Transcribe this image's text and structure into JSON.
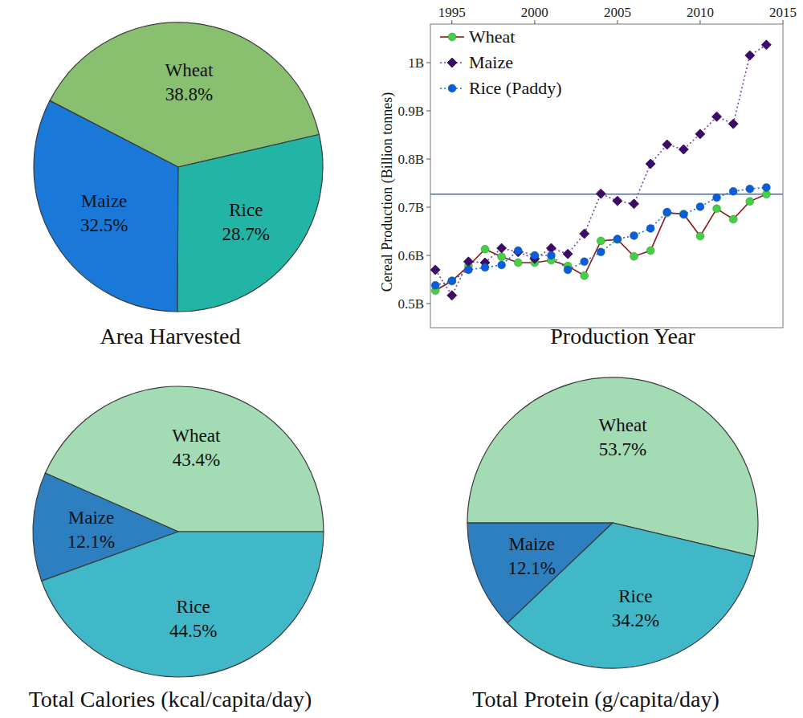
{
  "chart_data": [
    {
      "type": "pie",
      "title": "Area Harvested",
      "categories": [
        "Wheat",
        "Maize",
        "Rice"
      ],
      "values": [
        38.8,
        32.5,
        28.7
      ],
      "value_labels": [
        "38.8%",
        "32.5%",
        "28.7%"
      ],
      "colors": [
        "#88c070",
        "#1a78d8",
        "#22b5a5"
      ],
      "data_labels": true
    },
    {
      "type": "line",
      "x_label": "Production Year",
      "y_label": "Cereal Production (Billion tonnes)",
      "x": [
        1994,
        1995,
        1996,
        1997,
        1998,
        1999,
        2000,
        2001,
        2002,
        2003,
        2004,
        2005,
        2006,
        2007,
        2008,
        2009,
        2010,
        2011,
        2012,
        2013,
        2014
      ],
      "xlim": [
        1993.7,
        2015
      ],
      "xticks": [
        1995,
        2000,
        2005,
        2010,
        2015
      ],
      "ylim": [
        0.45,
        1.08
      ],
      "yticks": [
        {
          "value": 0.5,
          "label": "0.5B"
        },
        {
          "value": 0.6,
          "label": "0.6B"
        },
        {
          "value": 0.7,
          "label": "0.7B"
        },
        {
          "value": 0.8,
          "label": "0.8B"
        },
        {
          "value": 0.9,
          "label": "0.9B"
        },
        {
          "value": 1,
          "label": "1B"
        }
      ],
      "grid": false,
      "legend": "upper left",
      "reference_line": 0.727,
      "series": [
        {
          "name": "Wheat",
          "color": "#8b1a1a",
          "marker": "circle",
          "line_style": "solid",
          "values": [
            0.527,
            0.547,
            0.578,
            0.613,
            0.597,
            0.585,
            0.585,
            0.59,
            0.578,
            0.558,
            0.63,
            0.633,
            0.598,
            0.61,
            0.688,
            0.686,
            0.64,
            0.697,
            0.675,
            0.712,
            0.727
          ]
        },
        {
          "name": "Maize",
          "color": "#7a3fb0",
          "marker": "diamond",
          "line_style": "dotted",
          "values": [
            0.57,
            0.517,
            0.587,
            0.585,
            0.615,
            0.607,
            0.593,
            0.615,
            0.603,
            0.645,
            0.728,
            0.713,
            0.707,
            0.79,
            0.83,
            0.82,
            0.852,
            0.888,
            0.873,
            1.015,
            1.037
          ]
        },
        {
          "name": "Rice (Paddy)",
          "color": "#1a6fd6",
          "marker": "circle",
          "line_style": "dotted",
          "values": [
            0.538,
            0.547,
            0.57,
            0.575,
            0.58,
            0.61,
            0.6,
            0.6,
            0.57,
            0.587,
            0.607,
            0.634,
            0.641,
            0.656,
            0.69,
            0.685,
            0.701,
            0.72,
            0.733,
            0.738,
            0.741
          ]
        }
      ]
    },
    {
      "type": "pie",
      "title": "Total Calories (kcal/capita/day)",
      "categories": [
        "Wheat",
        "Maize",
        "Rice"
      ],
      "values": [
        43.4,
        12.1,
        44.5
      ],
      "value_labels": [
        "43.4%",
        "12.1%",
        "44.5%"
      ],
      "colors": [
        "#a3dbb5",
        "#2e7fbf",
        "#40b8c8"
      ],
      "data_labels": true
    },
    {
      "type": "pie",
      "title": "Total Protein (g/capita/day)",
      "categories": [
        "Wheat",
        "Maize",
        "Rice"
      ],
      "values": [
        53.7,
        12.1,
        34.2
      ],
      "value_labels": [
        "53.7%",
        "12.1%",
        "34.2%"
      ],
      "colors": [
        "#a3dbb5",
        "#2e7fbf",
        "#40b8c8"
      ],
      "data_labels": true
    }
  ]
}
